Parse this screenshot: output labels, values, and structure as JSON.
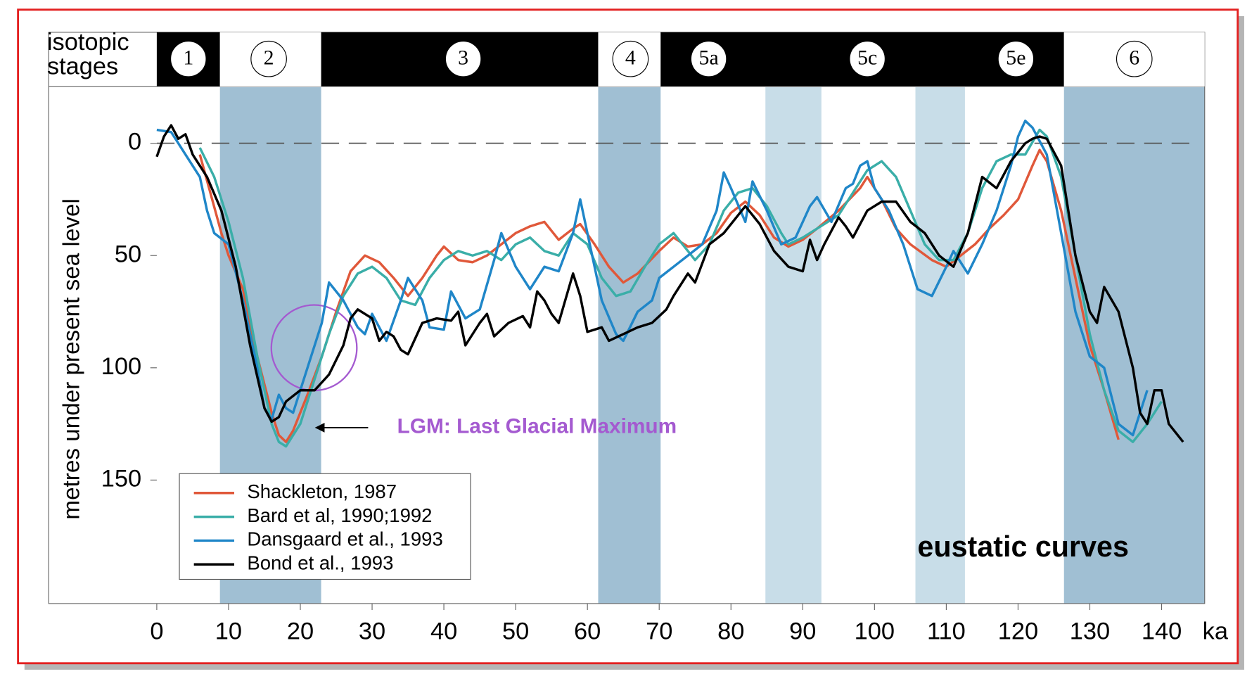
{
  "chart_data": {
    "type": "line",
    "title": "eustatic curves",
    "y_label": "metres under present sea level",
    "header_label": "isotopic stages",
    "x_unit": "ka",
    "annotation": "LGM: Last Glacial Maximum",
    "xlim": [
      0,
      146
    ],
    "ylim": [
      -25,
      205
    ],
    "y_reversed": true,
    "xticks": [
      0,
      10,
      20,
      30,
      40,
      50,
      60,
      70,
      80,
      90,
      100,
      110,
      120,
      130,
      140
    ],
    "yticks": [
      0,
      50,
      100,
      150
    ],
    "hline": 0,
    "legend": "lower left",
    "stage_bar": [
      {
        "start": 0,
        "end": 8.8,
        "dark": true
      },
      {
        "start": 8.8,
        "end": 22.9,
        "dark": false
      },
      {
        "start": 22.9,
        "end": 61.5,
        "dark": true
      },
      {
        "start": 61.5,
        "end": 70.2,
        "dark": false
      },
      {
        "start": 70.2,
        "end": 126.4,
        "dark": true
      },
      {
        "start": 126.4,
        "end": 146,
        "dark": false
      }
    ],
    "stage_labels": [
      {
        "label": "1",
        "at": 4.4
      },
      {
        "label": "2",
        "at": 15.6
      },
      {
        "label": "3",
        "at": 42.7
      },
      {
        "label": "4",
        "at": 66
      },
      {
        "label": "5a",
        "at": 76.9
      },
      {
        "label": "5c",
        "at": 99
      },
      {
        "label": "5e",
        "at": 119.7
      },
      {
        "label": "6",
        "at": 136.2
      }
    ],
    "bands": [
      {
        "start": 8.8,
        "end": 22.9,
        "color": "#a0bfd3"
      },
      {
        "start": 61.5,
        "end": 70.2,
        "color": "#a0bfd3"
      },
      {
        "start": 84.8,
        "end": 92.6,
        "color": "#c8dde8"
      },
      {
        "start": 105.7,
        "end": 112.6,
        "color": "#c8dde8"
      },
      {
        "start": 126.4,
        "end": 146,
        "color": "#a0bfd3"
      }
    ],
    "series": [
      {
        "name": "Shackleton, 1987",
        "color": "#e0583a",
        "x": [
          6,
          9,
          10,
          12,
          14,
          16,
          17,
          18,
          19,
          21,
          23,
          25,
          27,
          29,
          31,
          33,
          35,
          37,
          39,
          40,
          42,
          44,
          46,
          48,
          50,
          52,
          54,
          56,
          58,
          59,
          61,
          63,
          65,
          67,
          70,
          72,
          74,
          76,
          78,
          80,
          82,
          84,
          86,
          88,
          90,
          92,
          95,
          98,
          99,
          101,
          103,
          105,
          108,
          110,
          112,
          114,
          116,
          118,
          120,
          122,
          123,
          124,
          126,
          128,
          130,
          132,
          134
        ],
        "values": [
          5,
          40,
          50,
          65,
          95,
          120,
          130,
          133,
          128,
          112,
          95,
          75,
          57,
          50,
          53,
          60,
          68,
          60,
          50,
          46,
          52,
          53,
          50,
          45,
          40,
          37,
          35,
          43,
          38,
          36,
          45,
          55,
          62,
          58,
          48,
          42,
          46,
          45,
          40,
          31,
          26,
          32,
          42,
          46,
          43,
          38,
          30,
          20,
          15,
          25,
          38,
          45,
          52,
          55,
          50,
          45,
          38,
          32,
          25,
          10,
          3,
          8,
          30,
          60,
          90,
          110,
          132
        ]
      },
      {
        "name": "Bard et al, 1990;1992",
        "color": "#3aaea8",
        "x": [
          6,
          8,
          10,
          12,
          14,
          16,
          17,
          18,
          20,
          22,
          24,
          26,
          28,
          30,
          32,
          34,
          36,
          38,
          40,
          42,
          44,
          46,
          48,
          50,
          52,
          54,
          56,
          58,
          60,
          62,
          64,
          66,
          68,
          70,
          72,
          74,
          75,
          77,
          79,
          81,
          83,
          85,
          87,
          88,
          90,
          92,
          95,
          97,
          99,
          101,
          103,
          105,
          107,
          109,
          111,
          113,
          115,
          117,
          119,
          121,
          123,
          124,
          126,
          128,
          130,
          132,
          134,
          136,
          138,
          140
        ],
        "values": [
          2,
          15,
          35,
          60,
          95,
          125,
          133,
          135,
          125,
          105,
          85,
          68,
          58,
          55,
          60,
          70,
          72,
          60,
          52,
          48,
          50,
          48,
          52,
          45,
          42,
          48,
          50,
          40,
          45,
          60,
          68,
          66,
          55,
          45,
          40,
          48,
          52,
          45,
          30,
          22,
          20,
          28,
          40,
          45,
          42,
          38,
          32,
          22,
          12,
          8,
          15,
          30,
          45,
          52,
          52,
          40,
          20,
          8,
          5,
          5,
          -6,
          -3,
          15,
          50,
          85,
          110,
          128,
          133,
          125,
          115
        ]
      },
      {
        "name": "Dansgaard et al., 1993",
        "color": "#1f86c8",
        "x": [
          0,
          2,
          4,
          6,
          7,
          8,
          10,
          12,
          14,
          15,
          16,
          17,
          18,
          19,
          20,
          22,
          23,
          24,
          26,
          28,
          29,
          30,
          32,
          34,
          35,
          37,
          38,
          40,
          41,
          43,
          45,
          47,
          48,
          50,
          52,
          54,
          56,
          58,
          59,
          60,
          62,
          64,
          65,
          67,
          69,
          70,
          72,
          74,
          76,
          78,
          79,
          80,
          82,
          83,
          85,
          87,
          89,
          91,
          92,
          94,
          96,
          97,
          98,
          99,
          100,
          102,
          104,
          106,
          108,
          110,
          111,
          113,
          115,
          117,
          119,
          120,
          121,
          122,
          124,
          126,
          128,
          130,
          132,
          134,
          136,
          138
        ],
        "values": [
          -6,
          -5,
          5,
          15,
          30,
          40,
          45,
          70,
          100,
          118,
          123,
          112,
          118,
          120,
          110,
          90,
          80,
          62,
          70,
          82,
          85,
          76,
          88,
          70,
          60,
          70,
          82,
          83,
          66,
          78,
          74,
          52,
          40,
          55,
          65,
          55,
          57,
          40,
          25,
          40,
          70,
          85,
          88,
          75,
          70,
          60,
          55,
          50,
          45,
          30,
          13,
          20,
          35,
          17,
          30,
          45,
          42,
          28,
          24,
          35,
          20,
          18,
          10,
          8,
          20,
          30,
          45,
          65,
          68,
          55,
          48,
          58,
          45,
          30,
          10,
          -3,
          -10,
          -7,
          5,
          40,
          75,
          95,
          100,
          125,
          130,
          110
        ]
      },
      {
        "name": "Bond et al., 1993",
        "color": "#000000",
        "x": [
          0,
          1,
          2,
          3,
          4,
          5,
          6,
          7,
          9,
          11,
          13,
          15,
          16,
          17,
          18,
          20,
          22,
          24,
          26,
          27,
          28,
          30,
          31,
          32,
          33,
          34,
          35,
          37,
          39,
          41,
          42,
          43,
          45,
          46,
          47,
          49,
          51,
          52,
          53,
          54,
          55,
          56,
          58,
          59,
          60,
          62,
          63,
          65,
          67,
          69,
          71,
          72,
          74,
          75,
          77,
          79,
          81,
          82,
          84,
          86,
          88,
          90,
          91,
          92,
          93,
          95,
          96,
          97,
          99,
          101,
          103,
          105,
          107,
          109,
          111,
          113,
          115,
          117,
          119,
          120,
          121,
          122,
          123,
          124,
          126,
          128,
          130,
          131,
          132,
          134,
          136,
          137,
          138,
          139,
          140,
          141,
          143
        ],
        "values": [
          6,
          -3,
          -8,
          -2,
          -4,
          5,
          10,
          15,
          30,
          55,
          90,
          118,
          124,
          122,
          115,
          110,
          110,
          103,
          90,
          78,
          74,
          78,
          88,
          84,
          86,
          92,
          94,
          80,
          78,
          79,
          75,
          90,
          80,
          76,
          86,
          80,
          77,
          82,
          66,
          70,
          76,
          80,
          58,
          68,
          84,
          82,
          88,
          85,
          82,
          80,
          74,
          68,
          58,
          62,
          45,
          40,
          32,
          28,
          36,
          48,
          55,
          57,
          43,
          52,
          45,
          33,
          37,
          42,
          30,
          26,
          26,
          35,
          40,
          50,
          55,
          40,
          15,
          20,
          8,
          4,
          0,
          -2,
          -3,
          -2,
          10,
          50,
          75,
          80,
          64,
          75,
          100,
          120,
          125,
          110,
          110,
          125,
          133
        ]
      }
    ]
  }
}
